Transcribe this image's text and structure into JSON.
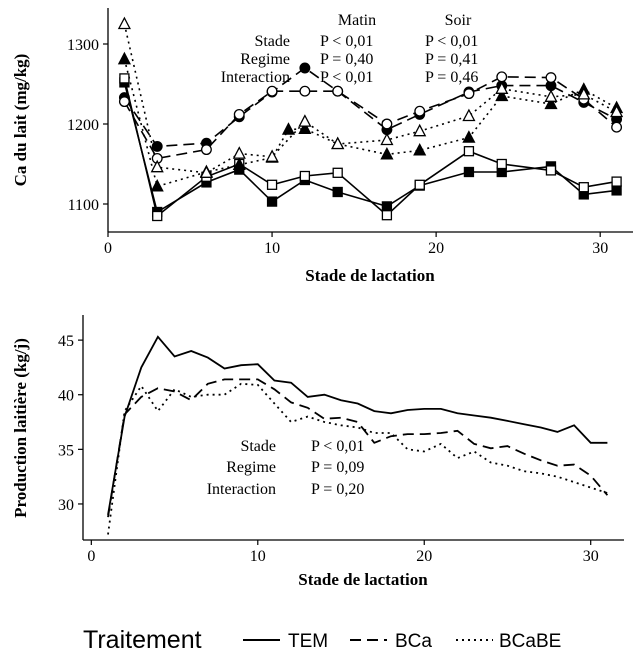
{
  "chart_data": [
    {
      "type": "line",
      "xlabel": "Stade de lactation",
      "ylabel": "Ca du lait (mg/kg)",
      "xlim": [
        0,
        32
      ],
      "ylim": [
        1065,
        1345
      ],
      "xticks": [
        "0",
        "10",
        "20",
        "30"
      ],
      "yticks": [
        "1100",
        "1200",
        "1300"
      ],
      "stats": {
        "headers": [
          "Matin",
          "Soir"
        ],
        "rows": [
          {
            "label": "Stade",
            "matin": "P < 0,01",
            "soir": "P < 0,01"
          },
          {
            "label": "Regime",
            "matin": "P = 0,40",
            "soir": "P = 0,41"
          },
          {
            "label": "Interaction",
            "matin": "P < 0,01",
            "soir": "P = 0,46"
          }
        ]
      },
      "series": [
        {
          "treatment": "TEM",
          "session": "Matin",
          "marker": "square-filled",
          "x": [
            1,
            3,
            6,
            8,
            10,
            12,
            14,
            17,
            19,
            22,
            24,
            27,
            29,
            31
          ],
          "y": [
            1252,
            1090,
            1127,
            1143,
            1103,
            1130,
            1115,
            1097,
            1123,
            1140,
            1140,
            1147,
            1112,
            1117
          ]
        },
        {
          "treatment": "TEM",
          "session": "Soir",
          "marker": "square-open",
          "x": [
            1,
            3,
            6,
            8,
            10,
            12,
            14,
            17,
            19,
            22,
            24,
            27,
            29,
            31
          ],
          "y": [
            1257,
            1085,
            1134,
            1150,
            1124,
            1135,
            1139,
            1086,
            1124,
            1166,
            1150,
            1142,
            1121,
            1128
          ]
        },
        {
          "treatment": "BCa",
          "session": "Matin",
          "marker": "circle-filled",
          "x": [
            1,
            3,
            6,
            8,
            10,
            12,
            14,
            17,
            19,
            22,
            24,
            27,
            29,
            31
          ],
          "y": [
            1233,
            1172,
            1176,
            1209,
            1240,
            1270,
            1241,
            1193,
            1212,
            1240,
            1248,
            1248,
            1227,
            1206
          ]
        },
        {
          "treatment": "BCa",
          "session": "Soir",
          "marker": "circle-open",
          "x": [
            1,
            3,
            6,
            8,
            10,
            12,
            14,
            17,
            19,
            22,
            24,
            27,
            29,
            31
          ],
          "y": [
            1228,
            1157,
            1168,
            1212,
            1241,
            1241,
            1241,
            1200,
            1216,
            1238,
            1259,
            1258,
            1231,
            1196
          ]
        },
        {
          "treatment": "BCaBE",
          "session": "Matin",
          "marker": "triangle-filled",
          "x": [
            1,
            3,
            6,
            8,
            10,
            11,
            12,
            14,
            17,
            19,
            22,
            24,
            27,
            29,
            31
          ],
          "y": [
            1281,
            1122,
            1140,
            1149,
            1158,
            1193,
            1194,
            1175,
            1162,
            1167,
            1183,
            1235,
            1225,
            1243,
            1220
          ]
        },
        {
          "treatment": "BCaBE",
          "session": "Soir",
          "marker": "triangle-open",
          "x": [
            1,
            3,
            6,
            8,
            10,
            12,
            14,
            17,
            19,
            22,
            24,
            27,
            29,
            31
          ],
          "y": [
            1325,
            1146,
            1139,
            1163,
            1159,
            1203,
            1175,
            1180,
            1191,
            1210,
            1244,
            1234,
            1237,
            1215
          ]
        }
      ]
    },
    {
      "type": "line",
      "xlabel": "Stade de lactation",
      "ylabel": "Production laitière (kg/j)",
      "xlim": [
        -0.5,
        32
      ],
      "ylim": [
        26.7,
        47.3
      ],
      "xticks": [
        "0",
        "10",
        "20",
        "30"
      ],
      "yticks": [
        "30",
        "35",
        "40",
        "45"
      ],
      "stats": {
        "rows": [
          {
            "label": "Stade",
            "value": "P < 0,01"
          },
          {
            "label": "Regime",
            "value": "P = 0,09"
          },
          {
            "label": "Interaction",
            "value": "P = 0,20"
          }
        ]
      },
      "series": [
        {
          "name": "TEM",
          "x": [
            1,
            2,
            3,
            4,
            5,
            6,
            7,
            8,
            9,
            10,
            11,
            12,
            13,
            14,
            15,
            16,
            17,
            18,
            19,
            20,
            21,
            22,
            23,
            24,
            25,
            26,
            27,
            28,
            29,
            30,
            31
          ],
          "y": [
            29.0,
            38.0,
            42.5,
            45.3,
            43.5,
            44.0,
            43.4,
            42.4,
            42.7,
            42.8,
            41.3,
            41.1,
            39.8,
            40.0,
            39.5,
            39.2,
            38.5,
            38.3,
            38.6,
            38.7,
            38.7,
            38.3,
            38.1,
            37.9,
            37.6,
            37.3,
            37.0,
            36.6,
            37.2,
            35.6,
            35.6
          ]
        },
        {
          "name": "BCa",
          "x": [
            1,
            2,
            3,
            4,
            5,
            6,
            7,
            8,
            9,
            10,
            11,
            12,
            13,
            14,
            15,
            16,
            17,
            18,
            19,
            20,
            21,
            22,
            23,
            24,
            25,
            26,
            27,
            28,
            29,
            30,
            31
          ],
          "y": [
            28.8,
            38.2,
            39.8,
            40.6,
            40.3,
            39.5,
            41.0,
            41.4,
            41.4,
            41.4,
            40.5,
            39.3,
            38.8,
            37.8,
            37.9,
            37.5,
            35.6,
            36.2,
            36.4,
            36.4,
            36.5,
            36.7,
            35.5,
            35.1,
            35.3,
            34.6,
            34.0,
            33.5,
            33.6,
            32.6,
            30.8
          ]
        },
        {
          "name": "BCaBE",
          "x": [
            1,
            2,
            3,
            4,
            5,
            6,
            7,
            8,
            9,
            10,
            11,
            12,
            13,
            14,
            15,
            16,
            17,
            18,
            19,
            20,
            21,
            22,
            23,
            24,
            25,
            26,
            27,
            28,
            29,
            30,
            31
          ],
          "y": [
            27.2,
            38.5,
            40.8,
            38.5,
            40.5,
            39.8,
            40.0,
            40.0,
            41.0,
            40.9,
            39.2,
            37.5,
            38.0,
            37.5,
            37.2,
            37.0,
            36.5,
            36.5,
            35.0,
            34.8,
            35.5,
            34.2,
            34.8,
            33.8,
            33.5,
            33.0,
            32.8,
            32.5,
            32.0,
            31.5,
            31.0
          ]
        }
      ]
    }
  ],
  "legend": {
    "title": "Traitement",
    "items": [
      {
        "name": "TEM",
        "dash": "solid"
      },
      {
        "name": "BCa",
        "dash": "dashed"
      },
      {
        "name": "BCaBE",
        "dash": "dotted"
      }
    ]
  }
}
